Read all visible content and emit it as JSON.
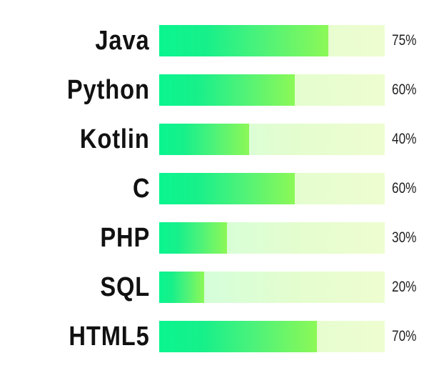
{
  "chart_data": {
    "type": "bar",
    "orientation": "horizontal",
    "categories": [
      "Java",
      "Python",
      "Kotlin",
      "C",
      "PHP",
      "SQL",
      "HTML5"
    ],
    "values": [
      75,
      60,
      40,
      60,
      30,
      20,
      70
    ],
    "value_labels": [
      "75%",
      "60%",
      "40%",
      "60%",
      "30%",
      "20%",
      "70%"
    ],
    "xlim": [
      0,
      100
    ],
    "unit": "%",
    "grid": false,
    "legend": "none",
    "colors": {
      "fill_start": "#0af58f",
      "fill_end": "#8cf857",
      "track_start": "#ccffdf",
      "track_end": "#eefdd0"
    }
  }
}
